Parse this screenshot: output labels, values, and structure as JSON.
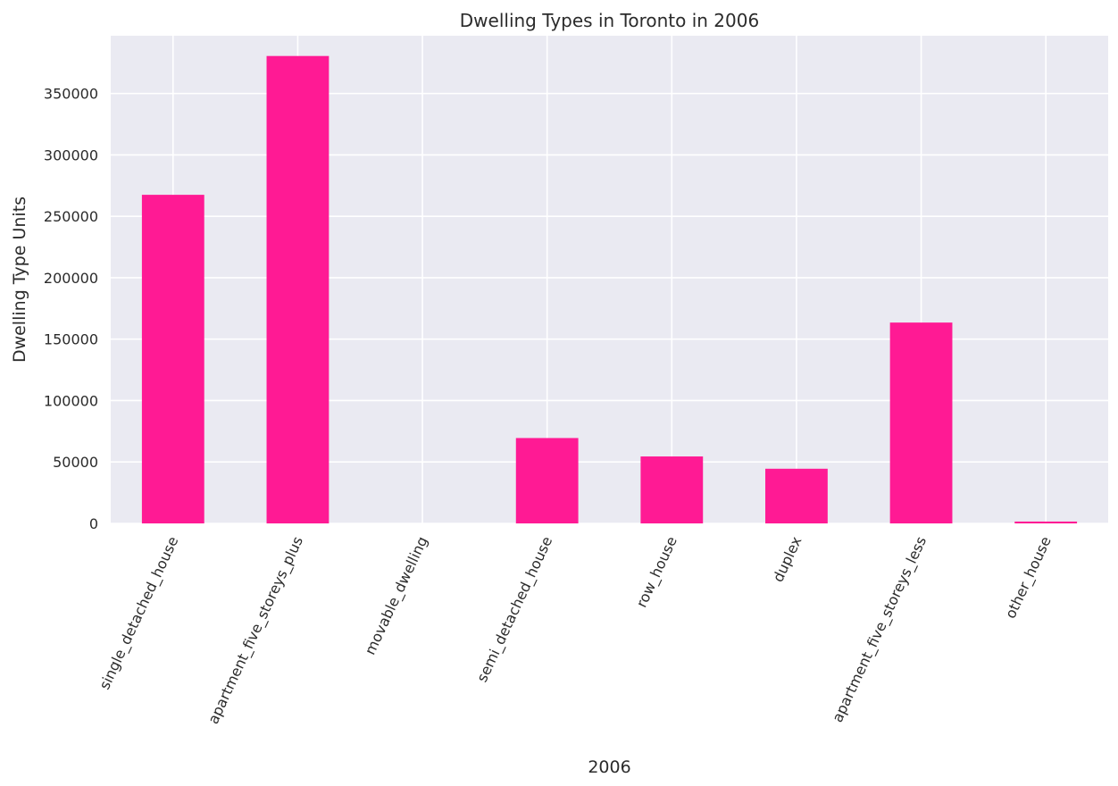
{
  "chart_data": {
    "type": "bar",
    "title": "Dwelling Types in Toronto in 2006",
    "xlabel": "2006",
    "ylabel": "Dwelling Type Units",
    "categories": [
      "single_detached_house",
      "apartment_five_storeys_plus",
      "movable_dwelling",
      "semi_detached_house",
      "row_house",
      "duplex",
      "apartment_five_storeys_less",
      "other_house"
    ],
    "values": [
      267500,
      380500,
      0,
      69500,
      54500,
      44500,
      163500,
      1500
    ],
    "ylim": [
      0,
      397000
    ],
    "yticks": [
      0,
      50000,
      100000,
      150000,
      200000,
      250000,
      300000,
      350000
    ],
    "ytick_labels": [
      "0",
      "50000",
      "100000",
      "150000",
      "200000",
      "250000",
      "300000",
      "350000"
    ],
    "grid": true,
    "legend": null,
    "colors": {
      "bar": "#ff1a94",
      "plot_background": "#eaeaf2",
      "grid": "#ffffff"
    }
  }
}
